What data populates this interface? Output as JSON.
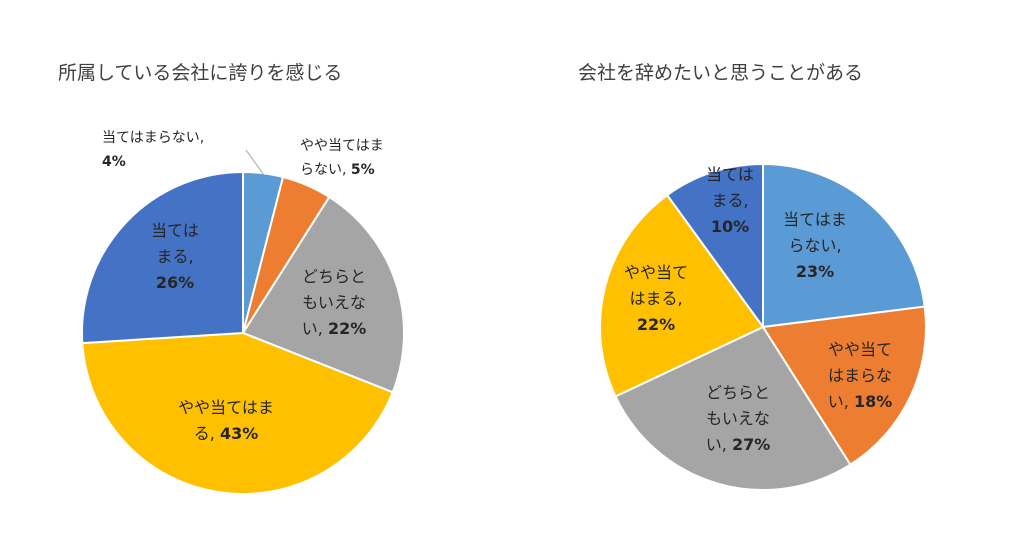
{
  "chart_data": [
    {
      "type": "pie",
      "title": "所属している会社に誇りを感じる",
      "slices": [
        {
          "label": "当てはまらない",
          "value": 4,
          "label_text": [
            "当てはまらない,",
            "4%"
          ],
          "color": "#5B9BD5"
        },
        {
          "label": "やや当てはまらない",
          "value": 5,
          "label_text": [
            "やや当てはま",
            "らない, 5%"
          ],
          "color": "#ED7D31"
        },
        {
          "label": "どちらともいえない",
          "value": 22,
          "label_text": [
            "どちらと",
            "もいえな",
            "い, 22%"
          ],
          "color": "#A5A5A5"
        },
        {
          "label": "やや当てはまる",
          "value": 43,
          "label_text": [
            "やや当てはま",
            "る, 43%"
          ],
          "color": "#FFC000"
        },
        {
          "label": "当てはまる",
          "value": 26,
          "label_text": [
            "当ては",
            "まる,",
            "26%"
          ],
          "color": "#4472C4"
        }
      ]
    },
    {
      "type": "pie",
      "title": "会社を辞めたいと思うことがある",
      "slices": [
        {
          "label": "当てはまらない",
          "value": 23,
          "label_text": [
            "当てはま",
            "らない,",
            "23%"
          ],
          "color": "#5B9BD5"
        },
        {
          "label": "やや当てはまらない",
          "value": 18,
          "label_text": [
            "やや当て",
            "はまらな",
            "い, 18%"
          ],
          "color": "#ED7D31"
        },
        {
          "label": "どちらともいえない",
          "value": 27,
          "label_text": [
            "どちらと",
            "もいえな",
            "い, 27%"
          ],
          "color": "#A5A5A5"
        },
        {
          "label": "やや当てはまる",
          "value": 22,
          "label_text": [
            "やや当て",
            "はまる,",
            "22%"
          ],
          "color": "#FFC000"
        },
        {
          "label": "当てはまる",
          "value": 10,
          "label_text": [
            "当ては",
            "まる,",
            "10%"
          ],
          "color": "#4472C4"
        }
      ]
    }
  ]
}
